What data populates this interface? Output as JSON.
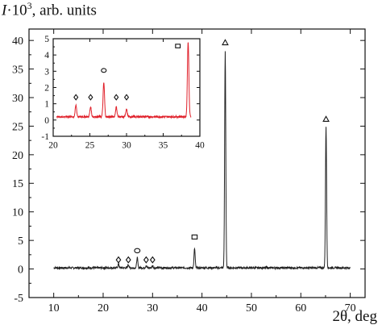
{
  "labels": {
    "ylabel_symbol": "I",
    "ylabel_mult": "·10",
    "ylabel_exp": "3",
    "ylabel_units": ", arb. units",
    "xlabel": "2θ, deg"
  },
  "chart_data": [
    {
      "type": "line",
      "role": "main",
      "color": "#222222",
      "xlim": [
        5,
        73
      ],
      "ylim": [
        -5,
        42
      ],
      "x_ticks": [
        "10",
        "20",
        "30",
        "40",
        "50",
        "60",
        "70"
      ],
      "y_ticks": [
        "-5",
        "0",
        "5",
        "10",
        "15",
        "20",
        "25",
        "30",
        "35",
        "40"
      ],
      "xlabel": "2θ, deg",
      "ylabel": "I·10^3, arb. units",
      "x_range": [
        10,
        70
      ],
      "baseline": 0.2,
      "peaks": [
        {
          "x": 23.1,
          "y": 0.9
        },
        {
          "x": 25.1,
          "y": 0.8
        },
        {
          "x": 26.9,
          "y": 2.0
        },
        {
          "x": 28.7,
          "y": 0.6
        },
        {
          "x": 30.0,
          "y": 0.6
        },
        {
          "x": 38.5,
          "y": 3.6
        },
        {
          "x": 44.7,
          "y": 38.0
        },
        {
          "x": 65.1,
          "y": 25.0
        }
      ],
      "markers": [
        {
          "x": 23.1,
          "y": 1.6,
          "symbol": "diamond"
        },
        {
          "x": 25.1,
          "y": 1.6,
          "symbol": "diamond"
        },
        {
          "x": 26.9,
          "y": 3.2,
          "symbol": "circle"
        },
        {
          "x": 28.7,
          "y": 1.6,
          "symbol": "diamond"
        },
        {
          "x": 30.0,
          "y": 1.6,
          "symbol": "diamond"
        },
        {
          "x": 38.5,
          "y": 5.6,
          "symbol": "square"
        },
        {
          "x": 44.7,
          "y": 39.6,
          "symbol": "triangle"
        },
        {
          "x": 65.1,
          "y": 26.2,
          "symbol": "triangle"
        }
      ]
    },
    {
      "type": "line",
      "role": "inset",
      "color": "#e0202a",
      "xlim": [
        20,
        40
      ],
      "ylim": [
        -1,
        5
      ],
      "x_ticks": [
        "20",
        "25",
        "30",
        "35",
        "40"
      ],
      "y_ticks": [
        "-1",
        "0",
        "1",
        "2",
        "3",
        "4",
        "5"
      ],
      "x_range": [
        20.5,
        38.8
      ],
      "baseline": 0.2,
      "peaks": [
        {
          "x": 23.1,
          "y": 0.9
        },
        {
          "x": 25.1,
          "y": 0.8
        },
        {
          "x": 26.9,
          "y": 2.3
        },
        {
          "x": 28.6,
          "y": 0.8
        },
        {
          "x": 30.0,
          "y": 0.65
        },
        {
          "x": 38.4,
          "y": 4.85
        }
      ],
      "markers": [
        {
          "x": 23.1,
          "y": 1.4,
          "symbol": "diamond"
        },
        {
          "x": 25.1,
          "y": 1.4,
          "symbol": "diamond"
        },
        {
          "x": 26.9,
          "y": 3.05,
          "symbol": "circle"
        },
        {
          "x": 28.6,
          "y": 1.4,
          "symbol": "diamond"
        },
        {
          "x": 30.0,
          "y": 1.4,
          "symbol": "diamond"
        },
        {
          "x": 37.0,
          "y": 4.55,
          "symbol": "square"
        }
      ]
    }
  ]
}
